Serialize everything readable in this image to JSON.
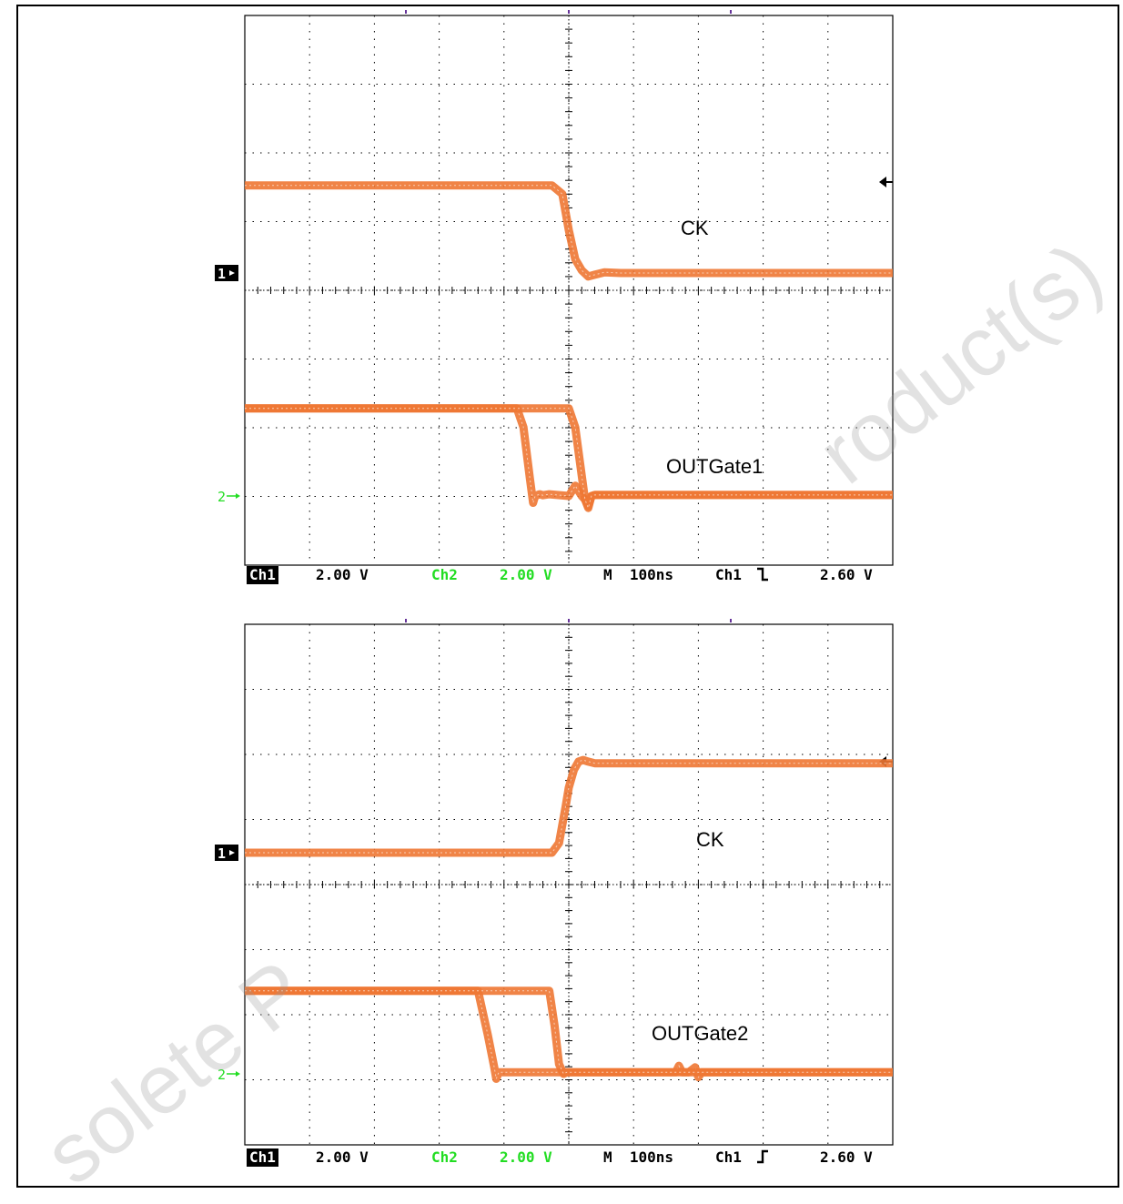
{
  "watermark": {
    "top_text": "roduct(s)",
    "bottom_text": "solete P"
  },
  "chart_data": [
    {
      "type": "line",
      "title": "",
      "trigger_edge": "falling",
      "status": {
        "ch1_label": "Ch1",
        "ch1_scale": "2.00 V",
        "ch2_label": "Ch2",
        "ch2_scale": "2.00 V",
        "timebase": "M  100ns",
        "trigger_channel": "Ch1",
        "trigger_level": "2.60 V"
      },
      "ch1_marker": "1",
      "ch2_marker": "2",
      "xlim": [
        -500,
        500
      ],
      "x_unit": "ns",
      "divisions": {
        "horizontal": 10,
        "vertical": 8
      },
      "series": [
        {
          "name": "CK",
          "label": "CK",
          "x": [
            -500,
            -26,
            -10,
            0,
            10,
            20,
            30,
            40,
            55,
            80,
            500
          ],
          "y": [
            2.55,
            2.55,
            2.3,
            1.25,
            0.4,
            0.08,
            -0.1,
            -0.05,
            0.02,
            0.0,
            0.0
          ]
        },
        {
          "name": "OUTGate1 (edge 1)",
          "label": "OUTGate1",
          "x": [
            -500,
            -80,
            -70,
            -60,
            -55,
            -52,
            -45,
            -40,
            -30,
            0,
            10,
            20,
            25,
            30,
            35,
            40,
            500
          ],
          "y": [
            2.55,
            2.55,
            2.0,
            0.5,
            -0.2,
            0.0,
            0.05,
            0.02,
            0.05,
            0.0,
            0.3,
            0.0,
            -0.1,
            -0.3,
            0.0,
            0.03,
            0.03
          ]
        },
        {
          "name": "OUTGate1 (edge 2)",
          "label": "",
          "x": [
            -500,
            0,
            10,
            20,
            25,
            30,
            35,
            40,
            500
          ],
          "y": [
            2.55,
            2.55,
            2.0,
            0.6,
            -0.1,
            -0.35,
            0.0,
            0.03,
            0.03
          ]
        }
      ],
      "series_colors": [
        "#ee7733",
        "#ee7733",
        "#ee7733"
      ]
    },
    {
      "type": "line",
      "title": "",
      "trigger_edge": "rising",
      "status": {
        "ch1_label": "Ch1",
        "ch1_scale": "2.00 V",
        "ch2_label": "Ch2",
        "ch2_scale": "2.00 V",
        "timebase": "M  100ns",
        "trigger_channel": "Ch1",
        "trigger_level": "2.60 V"
      },
      "ch1_marker": "1",
      "ch2_marker": "2",
      "xlim": [
        -500,
        500
      ],
      "x_unit": "ns",
      "divisions": {
        "horizontal": 10,
        "vertical": 8
      },
      "series": [
        {
          "name": "CK",
          "label": "CK",
          "x": [
            -500,
            -26,
            -15,
            -5,
            0,
            8,
            15,
            22,
            30,
            40,
            60,
            500
          ],
          "y": [
            0.0,
            0.0,
            0.3,
            1.4,
            2.0,
            2.55,
            2.8,
            2.85,
            2.8,
            2.75,
            2.75,
            2.75
          ]
        },
        {
          "name": "OUTGate2 (edge 1)",
          "label": "OUTGate2",
          "x": [
            -500,
            -140,
            -125,
            -115,
            -112,
            -108,
            -100,
            -90,
            0,
            165,
            170,
            175,
            185,
            195,
            200,
            205,
            500
          ],
          "y": [
            2.55,
            2.55,
            1.2,
            0.2,
            -0.15,
            0.05,
            0.05,
            0.05,
            0.05,
            0.05,
            0.25,
            0.05,
            0.05,
            0.2,
            -0.1,
            0.05,
            0.05
          ]
        },
        {
          "name": "OUTGate2 (edge 2)",
          "label": "",
          "x": [
            -500,
            -30,
            -22,
            -15,
            -8,
            -3,
            0,
            500
          ],
          "y": [
            2.55,
            2.55,
            1.5,
            0.3,
            0.0,
            0.05,
            0.05,
            0.05
          ]
        }
      ],
      "series_colors": [
        "#ee7733",
        "#ee7733",
        "#ee7733"
      ]
    }
  ]
}
